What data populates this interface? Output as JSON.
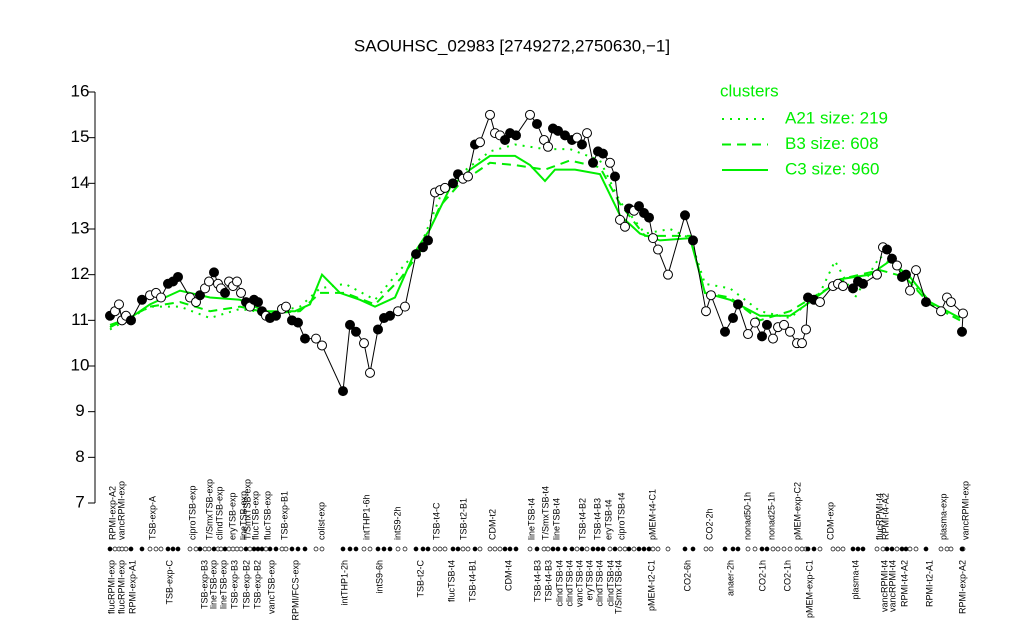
{
  "chart_data": {
    "type": "scatter",
    "title": "SAOUHSC_02983 [2749272,2750630,−1]",
    "ylim": [
      7,
      16
    ],
    "yticks": [
      7,
      8,
      9,
      10,
      11,
      12,
      13,
      14,
      15,
      16
    ],
    "xlim": [
      100,
      975
    ],
    "x": [
      110,
      115,
      119,
      122,
      126,
      131,
      142,
      150,
      156,
      161,
      168,
      173,
      178,
      190,
      196,
      200,
      205,
      209,
      214,
      218,
      221,
      225,
      229,
      233,
      237,
      241,
      246,
      250,
      254,
      258,
      262,
      266,
      270,
      276,
      282,
      286,
      292,
      298,
      305,
      316,
      322,
      343,
      350,
      356,
      364,
      370,
      378,
      384,
      390,
      398,
      405,
      416,
      423,
      428,
      435,
      440,
      445,
      453,
      458,
      463,
      468,
      475,
      480,
      490,
      495,
      500,
      505,
      510,
      516,
      530,
      537,
      544,
      548,
      553,
      558,
      565,
      572,
      577,
      582,
      587,
      593,
      598,
      603,
      610,
      615,
      620,
      625,
      629,
      634,
      639,
      644,
      649,
      653,
      658,
      668,
      685,
      693,
      706,
      711,
      725,
      733,
      738,
      748,
      755,
      762,
      767,
      773,
      778,
      784,
      790,
      797,
      802,
      806,
      808,
      814,
      820,
      833,
      838,
      843,
      853,
      858,
      863,
      877,
      883,
      887,
      892,
      897,
      902,
      906,
      910,
      916,
      926,
      941,
      947,
      951,
      963,
      962
    ],
    "values": [
      11.1,
      11.2,
      11.35,
      11.0,
      11.1,
      11.0,
      11.45,
      11.55,
      11.6,
      11.5,
      11.8,
      11.85,
      11.95,
      11.5,
      11.4,
      11.55,
      11.7,
      11.85,
      12.05,
      11.8,
      11.7,
      11.6,
      11.85,
      11.75,
      11.85,
      11.6,
      11.4,
      11.3,
      11.45,
      11.4,
      11.2,
      11.1,
      11.05,
      11.1,
      11.25,
      11.3,
      11.0,
      10.95,
      10.6,
      10.6,
      10.45,
      9.45,
      10.9,
      10.75,
      10.5,
      9.85,
      10.8,
      11.05,
      11.1,
      11.2,
      11.3,
      12.45,
      12.6,
      12.75,
      13.8,
      13.85,
      13.9,
      14.0,
      14.2,
      14.1,
      14.15,
      14.85,
      14.9,
      15.5,
      15.1,
      15.05,
      14.95,
      15.1,
      15.05,
      15.5,
      15.3,
      14.95,
      14.8,
      15.2,
      15.15,
      15.05,
      14.95,
      15.0,
      14.85,
      15.1,
      14.45,
      14.7,
      14.65,
      14.45,
      14.15,
      13.2,
      13.05,
      13.45,
      13.4,
      13.5,
      13.35,
      13.25,
      12.8,
      12.55,
      12.0,
      13.3,
      12.75,
      11.2,
      11.55,
      10.75,
      11.05,
      11.35,
      10.7,
      10.95,
      10.65,
      10.9,
      10.6,
      10.85,
      10.9,
      10.75,
      10.5,
      10.5,
      10.8,
      11.5,
      11.45,
      11.4,
      11.75,
      11.8,
      11.75,
      11.7,
      11.85,
      11.8,
      12.0,
      12.6,
      12.55,
      12.35,
      12.2,
      11.95,
      12.0,
      11.65,
      12.1,
      11.4,
      11.2,
      11.5,
      11.4,
      11.15,
      10.75
    ],
    "filled": [
      1,
      0,
      0,
      0,
      0,
      1,
      1,
      0,
      0,
      0,
      1,
      1,
      1,
      0,
      0,
      1,
      0,
      0,
      1,
      0,
      0,
      1,
      0,
      0,
      0,
      0,
      1,
      0,
      1,
      1,
      1,
      0,
      1,
      1,
      0,
      0,
      1,
      1,
      1,
      0,
      0,
      1,
      1,
      1,
      0,
      0,
      1,
      1,
      1,
      0,
      0,
      1,
      1,
      1,
      0,
      0,
      0,
      1,
      1,
      0,
      0,
      1,
      0,
      0,
      0,
      0,
      1,
      1,
      1,
      0,
      1,
      0,
      0,
      1,
      1,
      1,
      1,
      0,
      1,
      0,
      1,
      1,
      1,
      0,
      1,
      0,
      0,
      1,
      0,
      1,
      1,
      1,
      0,
      0,
      0,
      1,
      1,
      0,
      0,
      1,
      1,
      1,
      0,
      0,
      1,
      1,
      0,
      0,
      0,
      0,
      0,
      0,
      0,
      1,
      1,
      0,
      0,
      0,
      0,
      1,
      1,
      1,
      0,
      0,
      1,
      1,
      0,
      1,
      1,
      0,
      0,
      1,
      0,
      0,
      0,
      0,
      1
    ],
    "legend_title": "clusters",
    "series": [
      {
        "name": "A21 size: 219",
        "style": "dotted",
        "color": "#00ee00",
        "x": [
          110,
          150,
          180,
          210,
          240,
          270,
          300,
          320,
          345,
          375,
          400,
          420,
          440,
          460,
          490,
          515,
          545,
          570,
          600,
          620,
          645,
          670,
          690,
          705,
          730,
          760,
          790,
          820,
          835,
          855,
          880,
          905,
          930,
          960
        ],
        "values": [
          10.8,
          11.3,
          11.3,
          11.05,
          11.25,
          11.15,
          11.3,
          11.7,
          11.8,
          11.45,
          12.1,
          12.6,
          13.7,
          14.2,
          14.7,
          14.85,
          14.75,
          14.75,
          14.5,
          13.6,
          12.9,
          13.0,
          12.8,
          11.8,
          11.7,
          11.2,
          11.05,
          11.6,
          12.3,
          11.5,
          12.4,
          12.0,
          11.35,
          11.0
        ]
      },
      {
        "name": "B3 size: 608",
        "style": "dashed",
        "color": "#00ee00",
        "x": [
          110,
          150,
          180,
          210,
          240,
          270,
          300,
          320,
          345,
          375,
          400,
          420,
          440,
          460,
          490,
          515,
          545,
          570,
          600,
          620,
          645,
          670,
          690,
          705,
          730,
          760,
          790,
          820,
          850,
          880,
          905,
          930,
          960
        ],
        "values": [
          10.85,
          11.3,
          11.4,
          11.2,
          11.3,
          11.15,
          11.2,
          11.6,
          11.6,
          11.35,
          11.9,
          12.5,
          13.5,
          14.0,
          14.45,
          14.4,
          14.3,
          14.5,
          14.35,
          13.55,
          12.85,
          12.85,
          12.85,
          11.6,
          11.5,
          11.0,
          11.2,
          11.6,
          11.95,
          12.1,
          11.95,
          11.35,
          11.0
        ]
      },
      {
        "name": "C3 size: 960",
        "style": "solid",
        "color": "#00ee00",
        "x": [
          110,
          130,
          150,
          180,
          210,
          240,
          265,
          295,
          310,
          322,
          340,
          360,
          375,
          395,
          415,
          430,
          450,
          470,
          490,
          515,
          530,
          545,
          555,
          575,
          600,
          620,
          640,
          660,
          690,
          705,
          730,
          760,
          790,
          810,
          840,
          870,
          890,
          910,
          930,
          960
        ],
        "values": [
          10.9,
          11.05,
          11.35,
          11.65,
          11.5,
          11.45,
          11.2,
          11.2,
          11.35,
          12.0,
          11.6,
          11.45,
          11.3,
          11.5,
          12.5,
          13.0,
          13.9,
          14.3,
          14.6,
          14.6,
          14.4,
          14.05,
          14.3,
          14.3,
          14.2,
          13.3,
          12.9,
          12.75,
          12.8,
          11.6,
          11.45,
          11.1,
          11.1,
          11.4,
          11.9,
          12.0,
          12.3,
          11.95,
          11.4,
          11.05
        ]
      }
    ],
    "top_labels": [
      {
        "x": 113,
        "label": "RPMI-exp-A2"
      },
      {
        "x": 122,
        "label": "vancRPMI-exp"
      },
      {
        "x": 153,
        "label": "TSB-exp-A"
      },
      {
        "x": 193,
        "label": "ciproTSB-exp"
      },
      {
        "x": 210,
        "label": "T/SmxTSB-exp"
      },
      {
        "x": 220,
        "label": "clindTSB-exp"
      },
      {
        "x": 233,
        "label": "eryTSB-exp"
      },
      {
        "x": 244,
        "label": "lineTSB-exp"
      },
      {
        "x": 248,
        "label": "T/SmxTSB-exp"
      },
      {
        "x": 256,
        "label": "flucTSB-exp"
      },
      {
        "x": 268,
        "label": "flucTSB-exp"
      },
      {
        "x": 285,
        "label": "TSB-exp-B1"
      },
      {
        "x": 322,
        "label": "colist-exp"
      },
      {
        "x": 367,
        "label": "intTHP1-6h"
      },
      {
        "x": 398,
        "label": "intS9-2h"
      },
      {
        "x": 437,
        "label": "TSB-t4-C"
      },
      {
        "x": 464,
        "label": "TSB-t2-B1"
      },
      {
        "x": 493,
        "label": "CDM-t2"
      },
      {
        "x": 532,
        "label": "lineTSB-t4"
      },
      {
        "x": 546,
        "label": "T/SmxTSB-t4"
      },
      {
        "x": 557,
        "label": "lineTSB-t4"
      },
      {
        "x": 583,
        "label": "TSB-t4-B2"
      },
      {
        "x": 598,
        "label": "TSB-t4-B3"
      },
      {
        "x": 609,
        "label": "eryTSB-t4"
      },
      {
        "x": 622,
        "label": "ciproTSB-t4"
      },
      {
        "x": 653,
        "label": "pMEM-t4-C1"
      },
      {
        "x": 710,
        "label": "CO2-2h"
      },
      {
        "x": 748,
        "label": "nonad50-1h"
      },
      {
        "x": 772,
        "label": "nonad25-1h"
      },
      {
        "x": 798,
        "label": "pMEM-exp-C2"
      },
      {
        "x": 831,
        "label": "CDM-exp"
      },
      {
        "x": 880,
        "label": "flucRPMI-t4"
      },
      {
        "x": 886,
        "label": "RPMI-t4-A2"
      },
      {
        "x": 944,
        "label": "plasma-exp"
      },
      {
        "x": 966,
        "label": "vancRPMI-exp"
      }
    ],
    "bottom_labels": [
      {
        "x": 112,
        "label": "flucRPMI-exp"
      },
      {
        "x": 122,
        "label": "flucRPMI-exp"
      },
      {
        "x": 133,
        "label": "RPMI-exp-A1"
      },
      {
        "x": 170,
        "label": "TSB-exp-C"
      },
      {
        "x": 205,
        "label": "TSB-exp-B3"
      },
      {
        "x": 214,
        "label": "lineTSB-exp"
      },
      {
        "x": 224,
        "label": "lineTSB-exp"
      },
      {
        "x": 235,
        "label": "TSB-exp-B3"
      },
      {
        "x": 247,
        "label": "TSB-exp-B2"
      },
      {
        "x": 258,
        "label": "TSB-exp-B2"
      },
      {
        "x": 272,
        "label": "vancTSB-exp"
      },
      {
        "x": 296,
        "label": "RPMI/FCS-exp"
      },
      {
        "x": 345,
        "label": "intTHP1-2h"
      },
      {
        "x": 380,
        "label": "intS9-6h"
      },
      {
        "x": 421,
        "label": "TSB-t2-C"
      },
      {
        "x": 452,
        "label": "flucTSB-t4"
      },
      {
        "x": 473,
        "label": "TSB-t4-B1"
      },
      {
        "x": 509,
        "label": "CDM-t4"
      },
      {
        "x": 538,
        "label": "TSB-t4-B3"
      },
      {
        "x": 549,
        "label": "TSB-t4-B3"
      },
      {
        "x": 560,
        "label": "clindTSB-t4"
      },
      {
        "x": 570,
        "label": "clindTSB-t4"
      },
      {
        "x": 580,
        "label": "vancTSB-t4"
      },
      {
        "x": 590,
        "label": "eryTSB-t4"
      },
      {
        "x": 600,
        "label": "clindTSB-t4"
      },
      {
        "x": 611,
        "label": "clindTSB-t4"
      },
      {
        "x": 619,
        "label": "T/SmxTSB-t4"
      },
      {
        "x": 652,
        "label": "pMEM-t2-C1"
      },
      {
        "x": 688,
        "label": "CO2-6h"
      },
      {
        "x": 731,
        "label": "anaer-2h"
      },
      {
        "x": 763,
        "label": "CO2-1h"
      },
      {
        "x": 788,
        "label": "CO2-1h"
      },
      {
        "x": 810,
        "label": "pMEM-exp-C1"
      },
      {
        "x": 856,
        "label": "plasma-t4"
      },
      {
        "x": 885,
        "label": "vancRPMI-t4"
      },
      {
        "x": 893,
        "label": "vancRPMI-t4"
      },
      {
        "x": 905,
        "label": "RPMI-t4-A2"
      },
      {
        "x": 930,
        "label": "RPMI-t2-A1"
      },
      {
        "x": 963,
        "label": "RPMI-exp-A2"
      }
    ]
  }
}
